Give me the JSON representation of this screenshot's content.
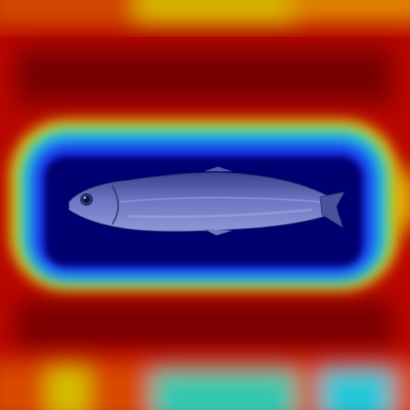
{
  "image": {
    "subject": "fish-icon",
    "overlay": "heatmap",
    "colors": {
      "hot": "#e01a00",
      "warm": "#f0b400",
      "mid": "#12d0c8",
      "cool": "#1a2cff",
      "cold": "#000070",
      "fish_body": "#6a74c0",
      "fish_belly": "#8e98d8",
      "fish_back": "#3a3f8a"
    }
  }
}
